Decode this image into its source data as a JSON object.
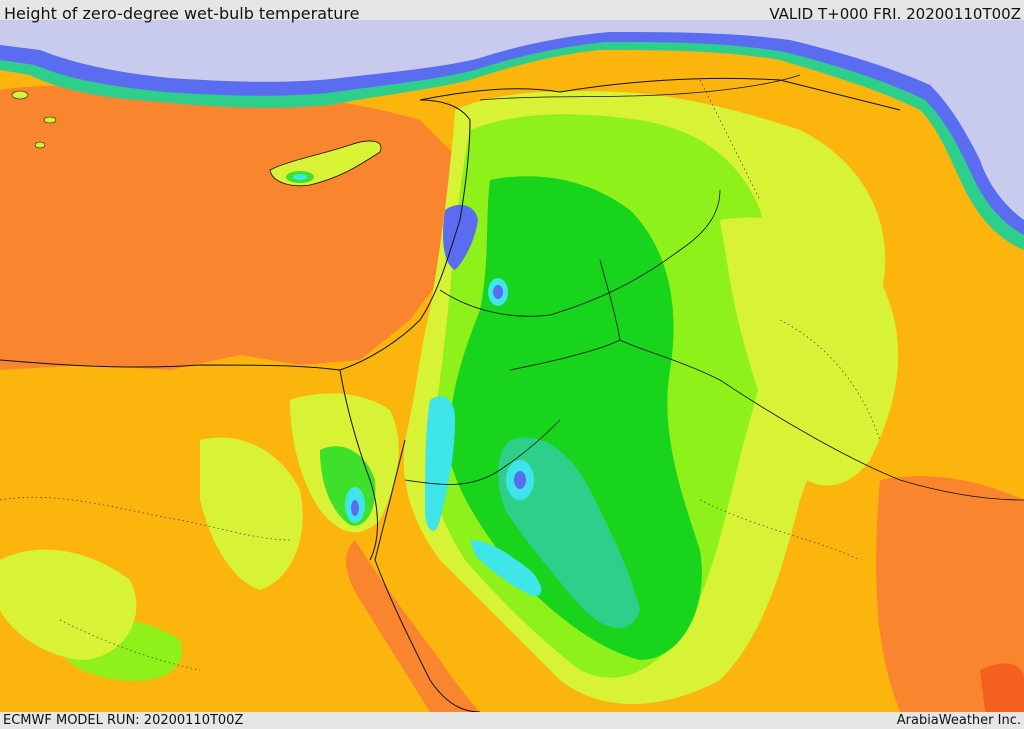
{
  "header": {
    "title": "Height of zero-degree wet-bulb temperature",
    "valid": "VALID T+000 FRI. 20200110T00Z"
  },
  "footer": {
    "model_run": "ECMWF MODEL RUN: 20200110T00Z",
    "credit": "ArabiaWeather Inc."
  },
  "map": {
    "region": "Eastern Mediterranean / Middle East",
    "palette": {
      "very_low": "#c9cbee",
      "low_blue": "#5a6cf0",
      "cyan": "#3ee6ea",
      "teal": "#2ecf8a",
      "green": "#19d41c",
      "light_green": "#3fe02c",
      "yellow_green": "#8ef21a",
      "lime": "#d8f236",
      "orange": "#fcb50d",
      "dark_orange": "#f9862f",
      "red_orange": "#f4611f"
    }
  }
}
